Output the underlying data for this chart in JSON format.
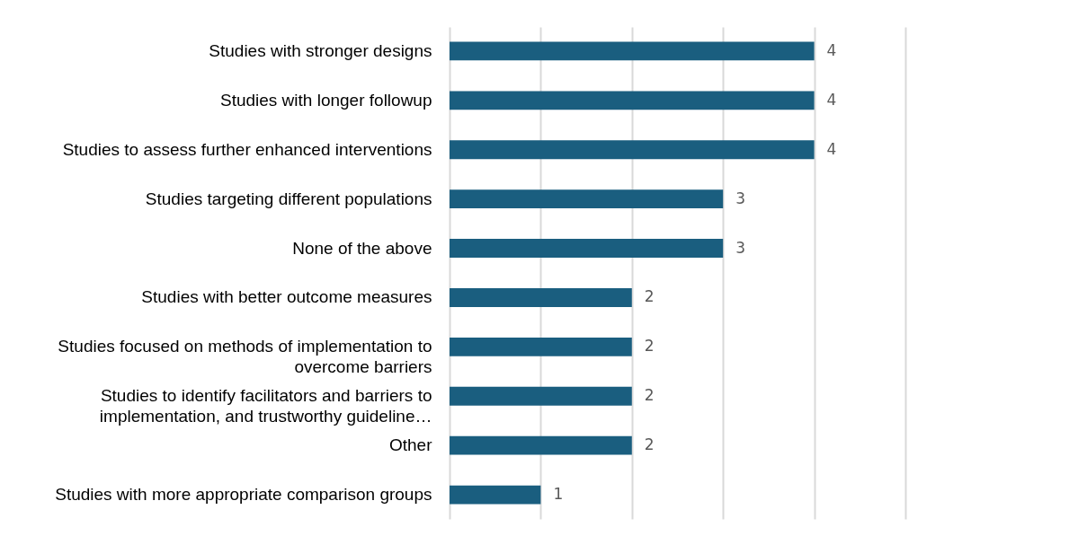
{
  "chart_data": {
    "type": "bar",
    "orientation": "horizontal",
    "categories": [
      "Studies with stronger designs",
      "Studies with longer followup",
      "Studies to assess further enhanced interventions",
      "Studies targeting different populations",
      "None of the above",
      "Studies with better outcome measures",
      "Studies focused on methods of implementation to overcome barriers",
      "Studies to identify facilitators and barriers to implementation, and trustworthy guideline…",
      "Other",
      "Studies with more appropriate comparison groups"
    ],
    "values": [
      4,
      4,
      4,
      3,
      3,
      2,
      2,
      2,
      2,
      1
    ],
    "color": "#1a5e7f",
    "xlim": [
      0,
      5
    ],
    "xticks": [
      {
        "value": 0,
        "label": null
      },
      {
        "value": 1,
        "label": null
      },
      {
        "value": 2,
        "label": null
      },
      {
        "value": 3,
        "label": null
      },
      {
        "value": 4,
        "label": null
      },
      {
        "value": 5,
        "label": null
      }
    ],
    "tick_labels": "y",
    "grid": "x",
    "data_labels": true
  }
}
